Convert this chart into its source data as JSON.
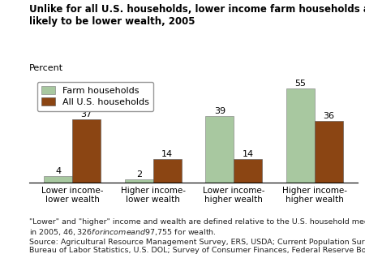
{
  "title": "Unlike for all U.S. households, lower income farm households are not\nlikely to be lower wealth, 2005",
  "ylabel": "Percent",
  "categories": [
    "Lower income-\nlower wealth",
    "Higher income-\nlower wealth",
    "Lower income-\nhigher wealth",
    "Higher income-\nhigher wealth"
  ],
  "farm_values": [
    4,
    2,
    39,
    55
  ],
  "us_values": [
    37,
    14,
    14,
    36
  ],
  "farm_color": "#a8c8a0",
  "us_color": "#8b4513",
  "farm_label": "Farm households",
  "us_label": "All U.S. households",
  "ylim": [
    0,
    62
  ],
  "bar_width": 0.35,
  "footnote_line1": "\"Lower\" and \"higher\" income and wealth are defined relative to the U.S. household medians:",
  "footnote_line2": "in 2005, $46,326 for income and $97,755 for wealth.",
  "footnote_line3": "Source: Agricultural Resource Management Survey, ERS, USDA; Current Population Survey,",
  "footnote_line4": "Bureau of Labor Statistics, U.S. DOL; Survey of Consumer Finances, Federal Reserve Board.",
  "title_fontsize": 8.5,
  "axis_fontsize": 7.5,
  "label_fontsize": 8,
  "footnote_fontsize": 6.8,
  "value_fontsize": 8
}
